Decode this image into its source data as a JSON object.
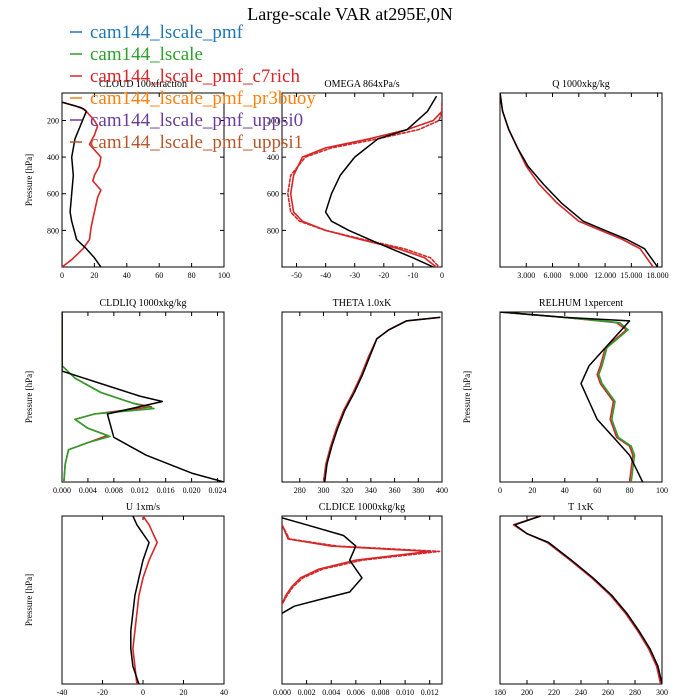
{
  "title": "Large-scale VAR at295E,0N",
  "legend": {
    "placement": "top-left",
    "entries": [
      {
        "name": "cam144_lscale_pmf",
        "color": "#1f77b4"
      },
      {
        "name": "cam144_lscale",
        "color": "#2ca02c"
      },
      {
        "name": "cam144_lscale_pmf_c7rich",
        "color": "#d62728"
      },
      {
        "name": "cam144_lscale_pmf_pr3buoy",
        "color": "#ff7f0e"
      },
      {
        "name": "cam144_lscale_pmf_uppsi0",
        "color": "#6a3d9a"
      },
      {
        "name": "cam144_lscale_pmf_uppsi1",
        "color": "#b5562c"
      }
    ]
  },
  "chart_data": [
    {
      "type": "line",
      "title": "CLOUD  100xfraction",
      "ylabel": "Pressure [hPa]",
      "xlim": [
        0,
        100
      ],
      "ylim": [
        1000,
        50
      ],
      "xticks": [
        0,
        20,
        40,
        60,
        80,
        100
      ],
      "xticklabels": [
        "0",
        "20",
        "40",
        "60",
        "80",
        "100"
      ],
      "yticks": [
        200,
        400,
        600,
        800
      ],
      "yticklabels": [
        "200",
        "400",
        "600",
        "800"
      ],
      "series": [
        {
          "color": "#d62728",
          "dashed": false,
          "x": [
            0,
            4,
            8,
            14,
            20,
            22,
            20,
            17,
            24,
            23,
            20,
            19,
            24,
            22,
            20,
            18,
            17,
            13,
            6,
            0
          ],
          "y": [
            100,
            110,
            120,
            140,
            200,
            230,
            280,
            330,
            400,
            450,
            500,
            530,
            580,
            620,
            700,
            780,
            850,
            900,
            960,
            1000
          ]
        },
        {
          "color": "#000000",
          "dashed": false,
          "x": [
            0,
            12,
            15,
            8,
            6,
            7,
            6,
            5,
            6,
            9,
            15,
            20,
            24
          ],
          "y": [
            100,
            130,
            150,
            300,
            400,
            500,
            600,
            700,
            750,
            850,
            900,
            950,
            1000
          ]
        }
      ]
    },
    {
      "type": "line",
      "title": "OMEGA  864xPa/s",
      "ylabel": "",
      "xlim": [
        -55,
        0
      ],
      "ylim": [
        1000,
        50
      ],
      "xticks": [
        -50,
        -40,
        -30,
        -20,
        -10,
        0
      ],
      "xticklabels": [
        "-50",
        "-40",
        "-30",
        "-20",
        "-10",
        "0"
      ],
      "yticks": [
        200,
        400,
        600,
        800
      ],
      "yticklabels": [
        "200",
        "400",
        "600",
        "800"
      ],
      "series": [
        {
          "color": "#d62728",
          "dashed": false,
          "x": [
            0,
            0,
            -3,
            -12,
            -25,
            -40,
            -48,
            -51,
            -52,
            -51,
            -48,
            -40,
            -28,
            -15,
            -6,
            -2
          ],
          "y": [
            100,
            150,
            200,
            250,
            300,
            350,
            400,
            500,
            600,
            700,
            750,
            800,
            850,
            900,
            950,
            1000
          ]
        },
        {
          "color": "#d62728",
          "dashed": true,
          "x": [
            0,
            0,
            -1,
            -8,
            -22,
            -38,
            -47,
            -52,
            -53,
            -52,
            -49,
            -40,
            -27,
            -13,
            -4,
            -1
          ],
          "y": [
            100,
            150,
            200,
            250,
            300,
            350,
            400,
            500,
            600,
            700,
            750,
            800,
            850,
            900,
            950,
            1000
          ]
        },
        {
          "color": "#000000",
          "dashed": false,
          "x": [
            -2,
            -5,
            -12,
            -22,
            -30,
            -35,
            -38,
            -40,
            -38,
            -32,
            -22,
            -10,
            -3
          ],
          "y": [
            70,
            150,
            250,
            300,
            400,
            500,
            600,
            700,
            750,
            800,
            870,
            950,
            1000
          ]
        }
      ]
    },
    {
      "type": "line",
      "title": "Q  1000xkg/kg",
      "ylabel": "",
      "xlim": [
        0,
        18.5
      ],
      "ylim": [
        1000,
        50
      ],
      "xticks": [
        3,
        6,
        9,
        12,
        15,
        18
      ],
      "xticklabels": [
        "3.000",
        "6.000",
        "9.000",
        "12.000",
        "15.000",
        "18.000"
      ],
      "series": [
        {
          "color": "#d62728",
          "dashed": false,
          "x": [
            0,
            0.3,
            1,
            2,
            3,
            4.5,
            6.5,
            9,
            11.5,
            14,
            16,
            17.5
          ],
          "y": [
            50,
            150,
            250,
            350,
            450,
            550,
            650,
            750,
            800,
            850,
            900,
            1000
          ]
        },
        {
          "color": "#000000",
          "dashed": false,
          "x": [
            0,
            0.3,
            1,
            2,
            3.2,
            5,
            7,
            9.5,
            12,
            14.5,
            16.5,
            18
          ],
          "y": [
            50,
            150,
            250,
            350,
            450,
            550,
            650,
            750,
            800,
            850,
            900,
            1000
          ]
        }
      ]
    },
    {
      "type": "line",
      "title": "CLDLIQ  1000xkg/kg",
      "ylabel": "Pressure [hPa]",
      "xlim": [
        0,
        0.025
      ],
      "ylim": [
        1000,
        50
      ],
      "xticks": [
        0,
        0.004,
        0.008,
        0.012,
        0.016,
        0.02,
        0.024
      ],
      "xticklabels": [
        "0.000",
        "0.004",
        "0.008",
        "0.012",
        "0.016",
        "0.020",
        "0.024"
      ],
      "series": [
        {
          "color": "#d62728",
          "dashed": false,
          "x": [
            0,
            0,
            0.002,
            0.006,
            0.011,
            0.0138,
            0.005,
            0.002,
            0.004,
            0.007,
            0.004,
            0.001,
            0.0005,
            0.0003
          ],
          "y": [
            50,
            350,
            420,
            500,
            560,
            580,
            620,
            650,
            700,
            740,
            780,
            820,
            900,
            1000
          ]
        },
        {
          "color": "#2ca02c",
          "dashed": false,
          "x": [
            0,
            0,
            0.002,
            0.006,
            0.011,
            0.0142,
            0.005,
            0.002,
            0.004,
            0.0074,
            0.004,
            0.001,
            0.0005,
            0.0003
          ],
          "y": [
            50,
            350,
            420,
            500,
            560,
            590,
            620,
            650,
            700,
            745,
            780,
            820,
            900,
            1000
          ]
        },
        {
          "color": "#000000",
          "dashed": false,
          "x": [
            0,
            0,
            0.006,
            0.012,
            0.0155,
            0.007,
            0.008,
            0.013,
            0.02,
            0.025
          ],
          "y": [
            50,
            380,
            450,
            520,
            550,
            620,
            750,
            850,
            950,
            1000
          ]
        }
      ]
    },
    {
      "type": "line",
      "title": "THETA  1.0xK",
      "ylabel": "",
      "xlim": [
        265,
        400
      ],
      "ylim": [
        1000,
        50
      ],
      "xticks": [
        280,
        300,
        320,
        340,
        360,
        380,
        400
      ],
      "xticklabels": [
        "280",
        "300",
        "320",
        "340",
        "360",
        "380",
        "400"
      ],
      "series": [
        {
          "color": "#d62728",
          "dashed": false,
          "x": [
            398,
            370,
            355,
            345,
            338,
            332,
            325,
            317,
            311,
            306,
            302,
            300
          ],
          "y": [
            80,
            100,
            150,
            200,
            300,
            400,
            500,
            600,
            700,
            800,
            900,
            1000
          ]
        },
        {
          "color": "#000000",
          "dashed": false,
          "x": [
            398,
            370,
            355,
            345,
            339,
            333,
            326,
            318,
            312,
            307,
            303,
            301
          ],
          "y": [
            80,
            100,
            150,
            200,
            300,
            400,
            500,
            600,
            700,
            800,
            900,
            1000
          ]
        }
      ]
    },
    {
      "type": "line",
      "title": "RELHUM  1xpercent",
      "ylabel": "Pressure [hPa]",
      "xlim": [
        0,
        100
      ],
      "ylim": [
        1000,
        50
      ],
      "xticks": [
        0,
        20,
        40,
        60,
        80,
        100
      ],
      "xticklabels": [
        "0",
        "20",
        "40",
        "60",
        "80",
        "100"
      ],
      "series": [
        {
          "color": "#d62728",
          "dashed": false,
          "x": [
            0,
            40,
            72,
            78,
            65,
            62,
            60,
            62,
            70,
            68,
            72,
            80,
            82,
            80
          ],
          "y": [
            50,
            80,
            110,
            150,
            250,
            350,
            400,
            450,
            550,
            650,
            750,
            800,
            850,
            1000
          ]
        },
        {
          "color": "#2ca02c",
          "dashed": false,
          "x": [
            0,
            40,
            74,
            79,
            66,
            63,
            61,
            63,
            71,
            69,
            73,
            81,
            83,
            81
          ],
          "y": [
            50,
            80,
            110,
            150,
            250,
            350,
            400,
            450,
            550,
            650,
            750,
            800,
            850,
            1000
          ]
        },
        {
          "color": "#000000",
          "dashed": false,
          "x": [
            0,
            40,
            80,
            75,
            65,
            55,
            50,
            55,
            60,
            70,
            80,
            88
          ],
          "y": [
            50,
            80,
            100,
            150,
            250,
            350,
            450,
            550,
            650,
            750,
            850,
            1000
          ]
        }
      ]
    },
    {
      "type": "line",
      "title": "U  1xm/s",
      "ylabel": "Pressure [hPa]",
      "xlim": [
        -40,
        40
      ],
      "ylim": [
        1000,
        50
      ],
      "xticks": [
        -40,
        -20,
        0,
        20,
        40
      ],
      "xticklabels": [
        "-40",
        "-20",
        "0",
        "20",
        "40"
      ],
      "series": [
        {
          "color": "#d62728",
          "dashed": false,
          "x": [
            0,
            3,
            5,
            7,
            3,
            0,
            -2,
            -4,
            -5,
            -4,
            -3
          ],
          "y": [
            50,
            100,
            150,
            200,
            300,
            400,
            500,
            700,
            800,
            900,
            1000
          ]
        },
        {
          "color": "#000000",
          "dashed": false,
          "x": [
            -5,
            -3,
            0,
            3,
            0,
            -2,
            -4,
            -6,
            -6,
            -5,
            -2
          ],
          "y": [
            50,
            100,
            150,
            200,
            300,
            400,
            500,
            700,
            800,
            900,
            1000
          ]
        }
      ]
    },
    {
      "type": "line",
      "title": "CLDICE  1000xkg/kg",
      "ylabel": "",
      "xlim": [
        0,
        0.013
      ],
      "ylim": [
        1000,
        50
      ],
      "xticks": [
        0,
        0.002,
        0.004,
        0.006,
        0.008,
        0.01,
        0.012
      ],
      "xticklabels": [
        "0.000",
        "0.002",
        "0.004",
        "0.006",
        "0.008",
        "0.010",
        "0.012"
      ],
      "series": [
        {
          "color": "#d62728",
          "dashed": false,
          "x": [
            0,
            0.0005,
            0.004,
            0.012,
            0.006,
            0.003,
            0.0015,
            0.0008,
            0.0003,
            0
          ],
          "y": [
            100,
            180,
            220,
            250,
            300,
            350,
            400,
            450,
            500,
            550
          ]
        },
        {
          "color": "#d62728",
          "dashed": true,
          "x": [
            0,
            0.0006,
            0.0045,
            0.0128,
            0.0065,
            0.0033,
            0.0017,
            0.0009,
            0.0004,
            0
          ],
          "y": [
            100,
            180,
            220,
            250,
            300,
            350,
            400,
            450,
            500,
            550
          ]
        },
        {
          "color": "#000000",
          "dashed": false,
          "x": [
            0,
            0.002,
            0.005,
            0.006,
            0.0055,
            0.006,
            0.0065,
            0.0055,
            0.0032,
            0.001,
            0
          ],
          "y": [
            60,
            100,
            160,
            220,
            300,
            350,
            400,
            480,
            520,
            560,
            600
          ]
        }
      ]
    },
    {
      "type": "line",
      "title": "T  1xK",
      "ylabel": "",
      "xlim": [
        180,
        300
      ],
      "ylim": [
        1000,
        50
      ],
      "xticks": [
        180,
        200,
        220,
        240,
        260,
        280,
        300
      ],
      "xticklabels": [
        "180",
        "200",
        "220",
        "240",
        "260",
        "280",
        "300"
      ],
      "series": [
        {
          "color": "#d62728",
          "dashed": false,
          "x": [
            210,
            190,
            200,
            215,
            232,
            248,
            262,
            273,
            282,
            290,
            296,
            299
          ],
          "y": [
            50,
            100,
            150,
            200,
            300,
            400,
            500,
            600,
            700,
            800,
            900,
            1000
          ]
        },
        {
          "color": "#000000",
          "dashed": false,
          "x": [
            210,
            191,
            200,
            216,
            233,
            249,
            263,
            274,
            283,
            291,
            297,
            300
          ],
          "y": [
            50,
            100,
            150,
            200,
            300,
            400,
            500,
            600,
            700,
            800,
            900,
            1000
          ]
        }
      ]
    }
  ]
}
